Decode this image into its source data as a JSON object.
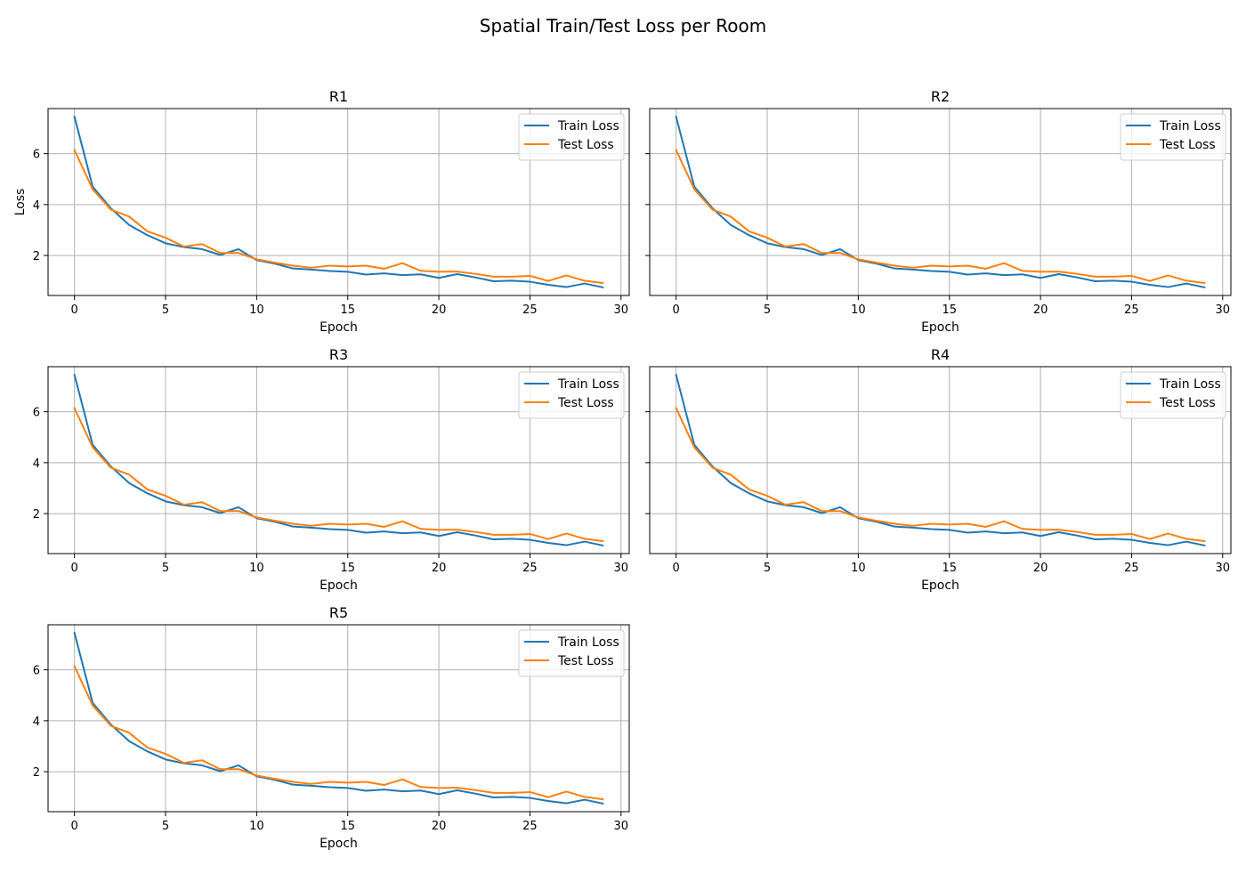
{
  "figure_title": "Spatial Train/Test Loss per Room",
  "chart_data": [
    {
      "type": "line",
      "title": "R1",
      "xlabel": "Epoch",
      "ylabel": "Loss",
      "xlim": [
        -1.45,
        30.45
      ],
      "ylim": [
        0.43,
        7.77
      ],
      "xticks": [
        0,
        5,
        10,
        15,
        20,
        25,
        30
      ],
      "yticks": [
        2,
        4,
        6
      ],
      "grid": true,
      "legend_position": "top-right",
      "x": [
        0,
        1,
        2,
        3,
        4,
        5,
        6,
        7,
        8,
        9,
        10,
        11,
        12,
        13,
        14,
        15,
        16,
        17,
        18,
        19,
        20,
        21,
        22,
        23,
        24,
        25,
        26,
        27,
        28,
        29
      ],
      "series": [
        {
          "name": "Train Loss",
          "color": "#1f77b4",
          "values": [
            7.45,
            4.7,
            3.85,
            3.2,
            2.8,
            2.48,
            2.33,
            2.25,
            2.02,
            2.25,
            1.82,
            1.68,
            1.49,
            1.45,
            1.39,
            1.36,
            1.25,
            1.3,
            1.23,
            1.26,
            1.12,
            1.27,
            1.14,
            0.99,
            1.01,
            0.97,
            0.85,
            0.76,
            0.9,
            0.75
          ]
        },
        {
          "name": "Test Loss",
          "color": "#ff7f0e",
          "values": [
            6.14,
            4.6,
            3.8,
            3.53,
            2.95,
            2.7,
            2.35,
            2.45,
            2.1,
            2.1,
            1.85,
            1.72,
            1.6,
            1.52,
            1.6,
            1.57,
            1.6,
            1.48,
            1.7,
            1.4,
            1.36,
            1.37,
            1.28,
            1.17,
            1.17,
            1.2,
            1.0,
            1.22,
            1.01,
            0.92
          ]
        }
      ]
    },
    {
      "type": "line",
      "title": "R2",
      "xlabel": "Epoch",
      "ylabel": "",
      "xlim": [
        -1.45,
        30.45
      ],
      "ylim": [
        0.43,
        7.77
      ],
      "xticks": [
        0,
        5,
        10,
        15,
        20,
        25,
        30
      ],
      "yticks": [
        2,
        4,
        6
      ],
      "grid": true,
      "legend_position": "top-right",
      "x": [
        0,
        1,
        2,
        3,
        4,
        5,
        6,
        7,
        8,
        9,
        10,
        11,
        12,
        13,
        14,
        15,
        16,
        17,
        18,
        19,
        20,
        21,
        22,
        23,
        24,
        25,
        26,
        27,
        28,
        29
      ],
      "series": [
        {
          "name": "Train Loss",
          "color": "#1f77b4",
          "values": [
            7.45,
            4.7,
            3.85,
            3.2,
            2.8,
            2.48,
            2.33,
            2.25,
            2.02,
            2.25,
            1.82,
            1.68,
            1.49,
            1.45,
            1.39,
            1.36,
            1.25,
            1.3,
            1.23,
            1.26,
            1.12,
            1.27,
            1.14,
            0.99,
            1.01,
            0.97,
            0.85,
            0.76,
            0.9,
            0.75
          ]
        },
        {
          "name": "Test Loss",
          "color": "#ff7f0e",
          "values": [
            6.14,
            4.6,
            3.8,
            3.53,
            2.95,
            2.7,
            2.35,
            2.45,
            2.1,
            2.1,
            1.85,
            1.72,
            1.6,
            1.52,
            1.6,
            1.57,
            1.6,
            1.48,
            1.7,
            1.4,
            1.36,
            1.37,
            1.28,
            1.17,
            1.17,
            1.2,
            1.0,
            1.22,
            1.01,
            0.92
          ]
        }
      ]
    },
    {
      "type": "line",
      "title": "R3",
      "xlabel": "Epoch",
      "ylabel": "",
      "xlim": [
        -1.45,
        30.45
      ],
      "ylim": [
        0.43,
        7.77
      ],
      "xticks": [
        0,
        5,
        10,
        15,
        20,
        25,
        30
      ],
      "yticks": [
        2,
        4,
        6
      ],
      "grid": true,
      "legend_position": "top-right",
      "x": [
        0,
        1,
        2,
        3,
        4,
        5,
        6,
        7,
        8,
        9,
        10,
        11,
        12,
        13,
        14,
        15,
        16,
        17,
        18,
        19,
        20,
        21,
        22,
        23,
        24,
        25,
        26,
        27,
        28,
        29
      ],
      "series": [
        {
          "name": "Train Loss",
          "color": "#1f77b4",
          "values": [
            7.45,
            4.7,
            3.85,
            3.2,
            2.8,
            2.48,
            2.33,
            2.25,
            2.02,
            2.25,
            1.82,
            1.68,
            1.49,
            1.45,
            1.39,
            1.36,
            1.25,
            1.3,
            1.23,
            1.26,
            1.12,
            1.27,
            1.14,
            0.99,
            1.01,
            0.97,
            0.85,
            0.76,
            0.9,
            0.75
          ]
        },
        {
          "name": "Test Loss",
          "color": "#ff7f0e",
          "values": [
            6.14,
            4.6,
            3.8,
            3.53,
            2.95,
            2.7,
            2.35,
            2.45,
            2.1,
            2.1,
            1.85,
            1.72,
            1.6,
            1.52,
            1.6,
            1.57,
            1.6,
            1.48,
            1.7,
            1.4,
            1.36,
            1.37,
            1.28,
            1.17,
            1.17,
            1.2,
            1.0,
            1.22,
            1.01,
            0.92
          ]
        }
      ]
    },
    {
      "type": "line",
      "title": "R4",
      "xlabel": "Epoch",
      "ylabel": "",
      "xlim": [
        -1.45,
        30.45
      ],
      "ylim": [
        0.43,
        7.77
      ],
      "xticks": [
        0,
        5,
        10,
        15,
        20,
        25,
        30
      ],
      "yticks": [
        2,
        4,
        6
      ],
      "grid": true,
      "legend_position": "top-right",
      "x": [
        0,
        1,
        2,
        3,
        4,
        5,
        6,
        7,
        8,
        9,
        10,
        11,
        12,
        13,
        14,
        15,
        16,
        17,
        18,
        19,
        20,
        21,
        22,
        23,
        24,
        25,
        26,
        27,
        28,
        29
      ],
      "series": [
        {
          "name": "Train Loss",
          "color": "#1f77b4",
          "values": [
            7.45,
            4.7,
            3.85,
            3.2,
            2.8,
            2.48,
            2.33,
            2.25,
            2.02,
            2.25,
            1.82,
            1.68,
            1.49,
            1.45,
            1.39,
            1.36,
            1.25,
            1.3,
            1.23,
            1.26,
            1.12,
            1.27,
            1.14,
            0.99,
            1.01,
            0.97,
            0.85,
            0.76,
            0.9,
            0.75
          ]
        },
        {
          "name": "Test Loss",
          "color": "#ff7f0e",
          "values": [
            6.14,
            4.6,
            3.8,
            3.53,
            2.95,
            2.7,
            2.35,
            2.45,
            2.1,
            2.1,
            1.85,
            1.72,
            1.6,
            1.52,
            1.6,
            1.57,
            1.6,
            1.48,
            1.7,
            1.4,
            1.36,
            1.37,
            1.28,
            1.17,
            1.17,
            1.2,
            1.0,
            1.22,
            1.01,
            0.92
          ]
        }
      ]
    },
    {
      "type": "line",
      "title": "R5",
      "xlabel": "Epoch",
      "ylabel": "",
      "xlim": [
        -1.45,
        30.45
      ],
      "ylim": [
        0.43,
        7.77
      ],
      "xticks": [
        0,
        5,
        10,
        15,
        20,
        25,
        30
      ],
      "yticks": [
        2,
        4,
        6
      ],
      "grid": true,
      "legend_position": "top-right",
      "x": [
        0,
        1,
        2,
        3,
        4,
        5,
        6,
        7,
        8,
        9,
        10,
        11,
        12,
        13,
        14,
        15,
        16,
        17,
        18,
        19,
        20,
        21,
        22,
        23,
        24,
        25,
        26,
        27,
        28,
        29
      ],
      "series": [
        {
          "name": "Train Loss",
          "color": "#1f77b4",
          "values": [
            7.45,
            4.7,
            3.85,
            3.2,
            2.8,
            2.48,
            2.33,
            2.25,
            2.02,
            2.25,
            1.82,
            1.68,
            1.49,
            1.45,
            1.39,
            1.36,
            1.25,
            1.3,
            1.23,
            1.26,
            1.12,
            1.27,
            1.14,
            0.99,
            1.01,
            0.97,
            0.85,
            0.76,
            0.9,
            0.75
          ]
        },
        {
          "name": "Test Loss",
          "color": "#ff7f0e",
          "values": [
            6.14,
            4.6,
            3.8,
            3.53,
            2.95,
            2.7,
            2.35,
            2.45,
            2.1,
            2.1,
            1.85,
            1.72,
            1.6,
            1.52,
            1.6,
            1.57,
            1.6,
            1.48,
            1.7,
            1.4,
            1.36,
            1.37,
            1.28,
            1.17,
            1.17,
            1.2,
            1.0,
            1.22,
            1.01,
            0.92
          ]
        }
      ]
    }
  ]
}
